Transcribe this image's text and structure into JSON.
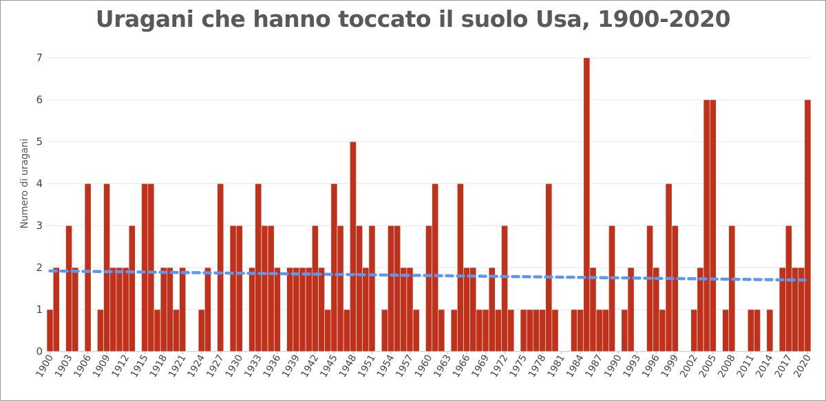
{
  "chart_data": {
    "type": "bar",
    "title": "Uragani che hanno toccato il suolo Usa, 1900-2020",
    "xlabel": "",
    "ylabel": "Numero di uragani",
    "ylim": [
      0,
      7
    ],
    "yticks": [
      0,
      1,
      2,
      3,
      4,
      5,
      6,
      7
    ],
    "grid": true,
    "legend": "none",
    "colors": {
      "bars": "#c0311b",
      "trend": "#5f96f0",
      "grid": "#e4e4e4"
    },
    "xtick_labels": [
      "1900",
      "1903",
      "1906",
      "1909",
      "1912",
      "1915",
      "1918",
      "1921",
      "1924",
      "1927",
      "1930",
      "1933",
      "1936",
      "1939",
      "1942",
      "1945",
      "1948",
      "1951",
      "1954",
      "1957",
      "1960",
      "1963",
      "1966",
      "1969",
      "1972",
      "1975",
      "1978",
      "1981",
      "1984",
      "1987",
      "1990",
      "1993",
      "1996",
      "1999",
      "2002",
      "2005",
      "2008",
      "2011",
      "2014",
      "2017",
      "2020"
    ],
    "categories": [
      1900,
      1901,
      1902,
      1903,
      1904,
      1905,
      1906,
      1907,
      1908,
      1909,
      1910,
      1911,
      1912,
      1913,
      1914,
      1915,
      1916,
      1917,
      1918,
      1919,
      1920,
      1921,
      1922,
      1923,
      1924,
      1925,
      1926,
      1927,
      1928,
      1929,
      1930,
      1931,
      1932,
      1933,
      1934,
      1935,
      1936,
      1937,
      1938,
      1939,
      1940,
      1941,
      1942,
      1943,
      1944,
      1945,
      1946,
      1947,
      1948,
      1949,
      1950,
      1951,
      1952,
      1953,
      1954,
      1955,
      1956,
      1957,
      1958,
      1959,
      1960,
      1961,
      1962,
      1963,
      1964,
      1965,
      1966,
      1967,
      1968,
      1969,
      1970,
      1971,
      1972,
      1973,
      1974,
      1975,
      1976,
      1977,
      1978,
      1979,
      1980,
      1981,
      1982,
      1983,
      1984,
      1985,
      1986,
      1987,
      1988,
      1989,
      1990,
      1991,
      1992,
      1993,
      1994,
      1995,
      1996,
      1997,
      1998,
      1999,
      2000,
      2001,
      2002,
      2003,
      2004,
      2005,
      2006,
      2007,
      2008,
      2009,
      2010,
      2011,
      2012,
      2013,
      2014,
      2015,
      2016,
      2017,
      2018,
      2019,
      2020
    ],
    "values": [
      1,
      2,
      0,
      3,
      2,
      0,
      4,
      0,
      1,
      4,
      2,
      2,
      2,
      3,
      0,
      4,
      4,
      1,
      2,
      2,
      1,
      2,
      0,
      0,
      1,
      2,
      0,
      4,
      0,
      3,
      3,
      0,
      2,
      4,
      3,
      3,
      2,
      0,
      2,
      2,
      2,
      2,
      3,
      2,
      1,
      4,
      3,
      1,
      5,
      3,
      2,
      3,
      0,
      1,
      3,
      3,
      2,
      2,
      1,
      0,
      3,
      4,
      1,
      0,
      1,
      4,
      2,
      2,
      1,
      1,
      2,
      1,
      3,
      1,
      0,
      1,
      1,
      1,
      1,
      4,
      1,
      0,
      0,
      1,
      1,
      7,
      2,
      1,
      1,
      3,
      0,
      1,
      2,
      0,
      0,
      3,
      2,
      1,
      4,
      3,
      0,
      0,
      1,
      2,
      6,
      6,
      0,
      1,
      3,
      0,
      0,
      1,
      1,
      0,
      1,
      0,
      2,
      3,
      2,
      2,
      6
    ],
    "trendline": {
      "style": "dashed",
      "start_value": 1.92,
      "end_value": 1.7
    }
  }
}
